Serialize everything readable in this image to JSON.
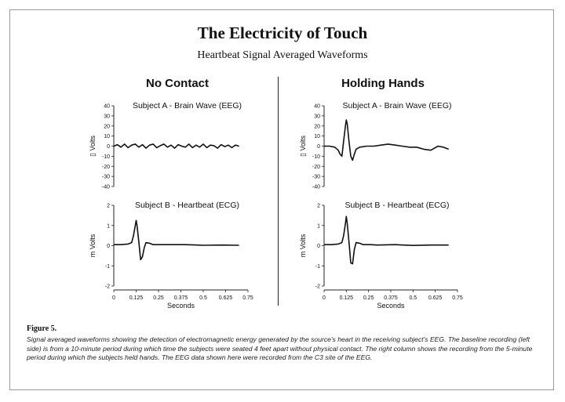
{
  "title": "The Electricity of Touch",
  "subtitle": "Heartbeat Signal Averaged Waveforms",
  "columns": [
    {
      "heading": "No Contact"
    },
    {
      "heading": "Holding Hands"
    }
  ],
  "figure_label": "Figure 5.",
  "caption": "Signal averaged waveforms showing the detection of electromagnetic energy generated by the source's heart in the receiving subject's EEG. The baseline recording (left side) is from a 10-minute period during which time the subjects were seated 4 feet apart without physical contact. The right column shows the recording from the 5-minute period during which the subjects held hands. The EEG data shown here were recorded from the C3 site of the EEG.",
  "chart_data": [
    {
      "type": "line",
      "title": "Subject A - Brain Wave (EEG)",
      "column": "No Contact",
      "ylabel": "\u0000 Volts",
      "ylabel_display": "▯ Volts",
      "ylim": [
        -40,
        40
      ],
      "yticks": [
        "40",
        "30",
        "20",
        "10",
        "0",
        "-10",
        "-20",
        "-30",
        "-40"
      ],
      "x": [
        0.0,
        0.02,
        0.04,
        0.06,
        0.08,
        0.1,
        0.12,
        0.14,
        0.16,
        0.18,
        0.2,
        0.22,
        0.24,
        0.26,
        0.28,
        0.3,
        0.32,
        0.34,
        0.36,
        0.38,
        0.4,
        0.42,
        0.44,
        0.46,
        0.48,
        0.5,
        0.52,
        0.54,
        0.56,
        0.58,
        0.6,
        0.62,
        0.64,
        0.66,
        0.68,
        0.7
      ],
      "values": [
        0,
        1.5,
        -1,
        2,
        -1.5,
        1,
        2,
        -1,
        1.5,
        -2,
        1,
        2,
        -1.5,
        0.5,
        2,
        -1,
        1,
        -2,
        1.5,
        0,
        -1,
        2,
        -1.5,
        1,
        -1,
        2,
        -1.5,
        1,
        0.5,
        -2,
        1.5,
        -0.5,
        1,
        -1.5,
        1,
        0
      ]
    },
    {
      "type": "line",
      "title": "Subject B - Heartbeat (ECG)",
      "column": "No Contact",
      "ylabel": "m Volts",
      "ylim": [
        -2,
        2
      ],
      "yticks": [
        "2",
        "1",
        "0",
        "-1",
        "-2"
      ],
      "xticks": [
        "0",
        "0.125",
        "0.25",
        "0.375",
        "0.5",
        "0.625",
        "0.75"
      ],
      "xlabel": "Seconds",
      "x": [
        0.0,
        0.04,
        0.08,
        0.1,
        0.11,
        0.12,
        0.125,
        0.13,
        0.14,
        0.15,
        0.16,
        0.17,
        0.18,
        0.2,
        0.22,
        0.26,
        0.3,
        0.4,
        0.5,
        0.6,
        0.7
      ],
      "values": [
        0.05,
        0.05,
        0.08,
        0.15,
        0.5,
        1.0,
        1.25,
        1.0,
        0.2,
        -0.7,
        -0.55,
        -0.1,
        0.15,
        0.12,
        0.05,
        0.05,
        0.05,
        0.05,
        0.02,
        0.03,
        0.02
      ]
    },
    {
      "type": "line",
      "title": "Subject A - Brain Wave (EEG)",
      "column": "Holding Hands",
      "ylabel": "▯ Volts",
      "ylim": [
        -40,
        40
      ],
      "yticks": [
        "40",
        "30",
        "20",
        "10",
        "0",
        "-10",
        "-20",
        "-30",
        "-40"
      ],
      "x": [
        0.0,
        0.03,
        0.06,
        0.08,
        0.09,
        0.1,
        0.11,
        0.12,
        0.125,
        0.13,
        0.14,
        0.15,
        0.16,
        0.17,
        0.18,
        0.2,
        0.24,
        0.28,
        0.32,
        0.36,
        0.4,
        0.44,
        0.48,
        0.52,
        0.56,
        0.6,
        0.64,
        0.67,
        0.7
      ],
      "values": [
        0,
        0,
        -1,
        -4,
        -8,
        -10,
        5,
        20,
        26,
        22,
        5,
        -10,
        -14,
        -8,
        -3,
        -1,
        0,
        0,
        1,
        2,
        1,
        0,
        -1,
        -1,
        -3,
        -4,
        0,
        -1,
        -3
      ]
    },
    {
      "type": "line",
      "title": "Subject B - Heartbeat (ECG)",
      "column": "Holding Hands",
      "ylabel": "m Volts",
      "ylim": [
        -2,
        2
      ],
      "yticks": [
        "2",
        "1",
        "0",
        "-1",
        "-2"
      ],
      "xticks": [
        "0",
        "0.125",
        "0.25",
        "0.375",
        "0.5",
        "0.625",
        "0.75"
      ],
      "xlabel": "Seconds",
      "x": [
        0.0,
        0.04,
        0.08,
        0.1,
        0.11,
        0.12,
        0.125,
        0.13,
        0.14,
        0.15,
        0.16,
        0.17,
        0.18,
        0.2,
        0.22,
        0.26,
        0.3,
        0.4,
        0.5,
        0.6,
        0.7
      ],
      "values": [
        0.05,
        0.05,
        0.08,
        0.15,
        0.5,
        1.1,
        1.45,
        1.1,
        0.2,
        -0.85,
        -0.9,
        -0.2,
        0.15,
        0.12,
        0.05,
        0.05,
        0.03,
        0.05,
        0.01,
        0.03,
        0.03
      ]
    }
  ]
}
